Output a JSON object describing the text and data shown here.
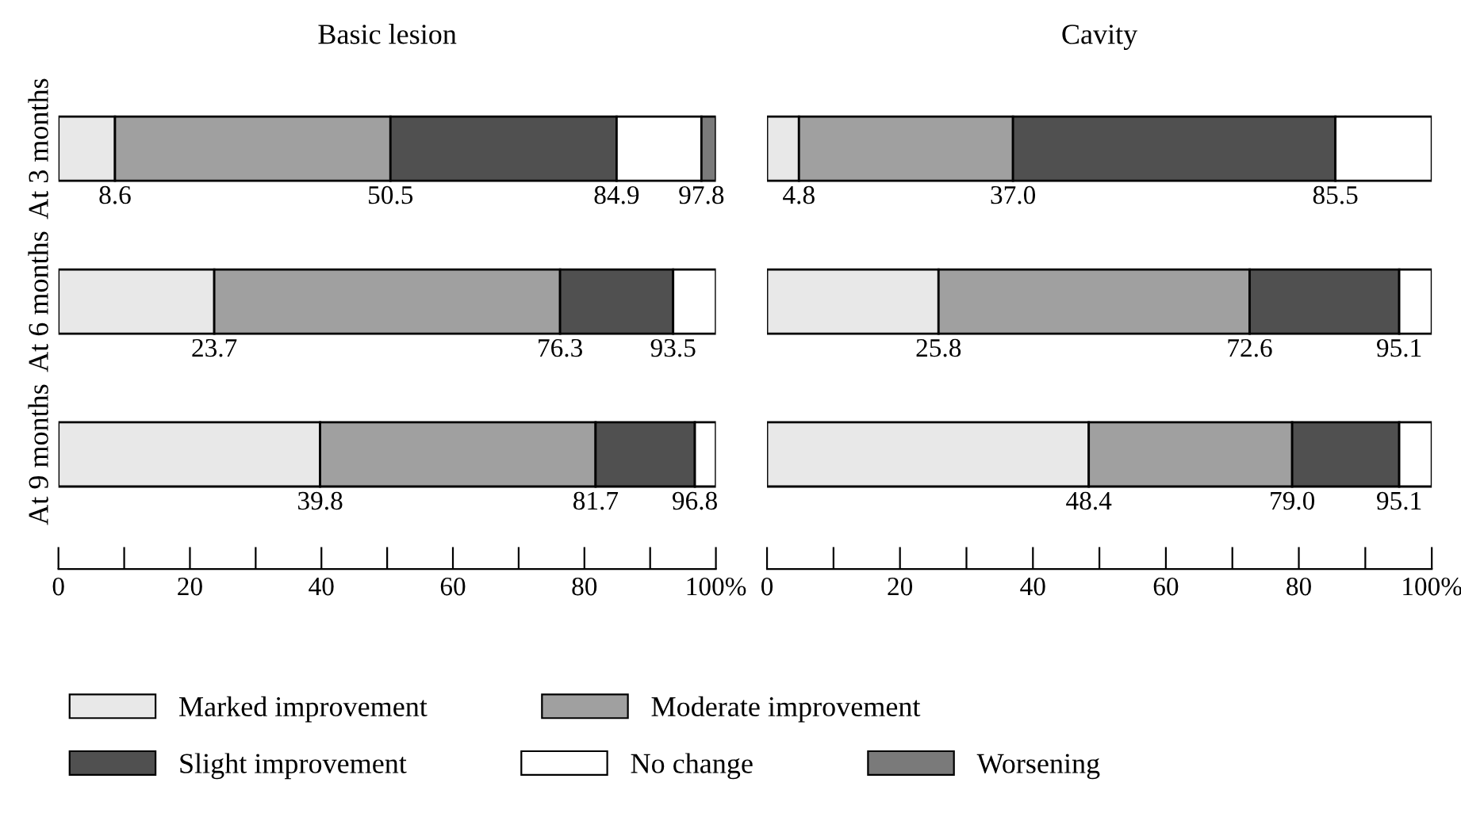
{
  "chart_data": [
    {
      "type": "bar",
      "title": "Basic lesion",
      "orientation": "horizontal",
      "stacked": true,
      "legend": "bottom",
      "categories": [
        "At 3 months",
        "At 6 months",
        "At 9 months"
      ],
      "xlim": [
        0,
        100
      ],
      "xticks": [
        0,
        {
          "value": 10,
          "label": null
        },
        20,
        {
          "value": 30,
          "label": null
        },
        40,
        {
          "value": 50,
          "label": null
        },
        60,
        {
          "value": 70,
          "label": null
        },
        80,
        {
          "value": 90,
          "label": null
        },
        {
          "value": 100,
          "label": "100%"
        }
      ],
      "series": [
        {
          "name": "Marked improvement",
          "color": "#e8e8e8",
          "values": [
            8.6,
            23.7,
            39.8
          ]
        },
        {
          "name": "Moderate improvement",
          "color": "#a0a0a0",
          "values": [
            41.9,
            52.6,
            41.9
          ]
        },
        {
          "name": "Slight improvement",
          "color": "#505050",
          "values": [
            34.4,
            17.2,
            15.1
          ]
        },
        {
          "name": "No change",
          "color": "#ffffff",
          "values": [
            12.9,
            6.5,
            3.2
          ]
        },
        {
          "name": "Worsening",
          "color": "#7a7a7a",
          "values": [
            2.2,
            0,
            0
          ]
        }
      ],
      "annotations": [
        {
          "text": "8.6",
          "x": 8.6,
          "y": "At 3 months"
        },
        {
          "text": "50.5",
          "x": 50.5,
          "y": "At 3 months"
        },
        {
          "text": "84.9",
          "x": 84.9,
          "y": "At 3 months"
        },
        {
          "text": "97.8",
          "x": 97.8,
          "y": "At 3 months"
        },
        {
          "text": "23.7",
          "x": 23.7,
          "y": "At 6 months"
        },
        {
          "text": "76.3",
          "x": 76.3,
          "y": "At 6 months"
        },
        {
          "text": "93.5",
          "x": 93.5,
          "y": "At 6 months"
        },
        {
          "text": "39.8",
          "x": 39.8,
          "y": "At 9 months"
        },
        {
          "text": "81.7",
          "x": 81.7,
          "y": "At 9 months"
        },
        {
          "text": "96.8",
          "x": 96.8,
          "y": "At 9 months"
        }
      ]
    },
    {
      "type": "bar",
      "title": "Cavity",
      "orientation": "horizontal",
      "stacked": true,
      "tick_labels": "x",
      "categories": [
        "At 3 months",
        "At 6 months",
        "At 9 months"
      ],
      "xlim": [
        0,
        100
      ],
      "xticks": [
        0,
        {
          "value": 10,
          "label": null
        },
        20,
        {
          "value": 30,
          "label": null
        },
        40,
        {
          "value": 50,
          "label": null
        },
        60,
        {
          "value": 70,
          "label": null
        },
        80,
        {
          "value": 90,
          "label": null
        },
        {
          "value": 100,
          "label": "100%"
        }
      ],
      "series": [
        {
          "color": "#e8e8e8",
          "values": [
            4.8,
            25.8,
            48.4
          ]
        },
        {
          "color": "#a0a0a0",
          "values": [
            32.2,
            46.8,
            30.6
          ]
        },
        {
          "color": "#505050",
          "values": [
            48.5,
            22.5,
            16.1
          ]
        },
        {
          "color": "#ffffff",
          "values": [
            14.5,
            4.9,
            4.9
          ]
        }
      ],
      "annotations": [
        {
          "text": "4.8",
          "x": 4.8,
          "y": "At 3 months"
        },
        {
          "text": "37.0",
          "x": 37.0,
          "y": "At 3 months"
        },
        {
          "text": "85.5",
          "x": 85.5,
          "y": "At 3 months"
        },
        {
          "text": "25.8",
          "x": 25.8,
          "y": "At 6 months"
        },
        {
          "text": "72.6",
          "x": 72.6,
          "y": "At 6 months"
        },
        {
          "text": "95.1",
          "x": 95.1,
          "y": "At 6 months"
        },
        {
          "text": "48.4",
          "x": 48.4,
          "y": "At 9 months"
        },
        {
          "text": "79.0",
          "x": 79.0,
          "y": "At 9 months"
        },
        {
          "text": "95.1",
          "x": 95.1,
          "y": "At 9 months"
        }
      ]
    }
  ]
}
